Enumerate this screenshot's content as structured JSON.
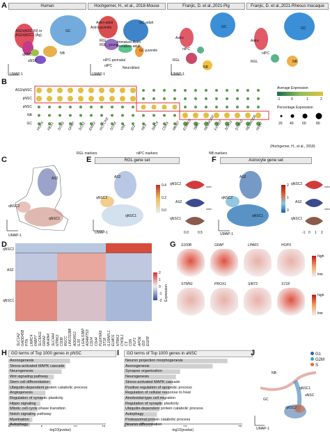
{
  "panel_letters": {
    "a": "A",
    "b": "B",
    "c": "C",
    "d": "D",
    "e": "E",
    "f": "F",
    "g": "G",
    "h": "H",
    "i": "I",
    "j": "J"
  },
  "axis": {
    "umap1": "UMAP-1",
    "umap2": "UMAP-2"
  },
  "panel_a": {
    "titles": [
      "Human",
      "Hochgerner, H., et al., 2018-Mouse",
      "Franjic, D. et al.,2021-Pig",
      "Franjic, D. et al.,2021-Rhesus macaque"
    ],
    "human_labels": {
      "as2_q": "AS2/qNSC (N) or",
      "as2_q2": "AS2/qNSC1 (Ag)",
      "qnsc": "qNSC",
      "ansc": "aNSC",
      "gc": "GC",
      "nb": "NB"
    },
    "mouse_labels": {
      "astro_adult": "Astro-adult",
      "astro_juv": "Astro-juvenile",
      "rgl": "RGL",
      "rgl_young": "RGL_young",
      "imm_astro": "Immature-Astro",
      "imm_adult": "Immature-adult",
      "gc_adult": "GC-adult",
      "gc_juv": "GC-juvenile",
      "nipc_peri": "nIPC-perinatal",
      "nipc": "nIPC",
      "neuroblast": "Neuroblast",
      "imm_gc": "Immature-GC"
    },
    "pig_labels": {
      "astro": "Astro",
      "nipc": "nIPC",
      "rgl": "RGL",
      "nb": "NB",
      "gc": "GC"
    },
    "macaque_labels": {
      "astro": "Astro",
      "nipc": "nIPC",
      "rgl": "RGL",
      "nb": "NB",
      "gc": "GC"
    }
  },
  "panel_b": {
    "rows": [
      "AS2/qNSC",
      "pNSC",
      "aNSC",
      "NB",
      "GC"
    ],
    "genes": [
      "HOPX",
      "HES1",
      "SOX9",
      "GFAP",
      "SOX2",
      "EMX2",
      "NOTCH2",
      "SOX4",
      "VIM",
      "ID3",
      "NES",
      "SMC4",
      "CDK4",
      "MKI67",
      "EOMES",
      "TBR1",
      "NEUROD2",
      "FXYD7",
      "SOX11",
      "STMN2",
      "NEUROD6",
      "NNAT"
    ],
    "group_labels": [
      "RGL markers",
      "nIPC markers",
      "NB markers"
    ],
    "citation": "(Hochgerner, H., et al., 2018)",
    "legend": {
      "avg_title": "Average Expression",
      "avg_ticks": [
        "-1",
        "0",
        "1",
        "2"
      ],
      "pct_title": "Percentage Expression",
      "pct_ticks": [
        "20",
        "40",
        "60",
        "80"
      ]
    },
    "colors": {
      "low": "#1a6b4f",
      "mid": "#8fbf5a",
      "high": "#e0c040"
    }
  },
  "panel_c": {
    "labels": {
      "as2": "AS2",
      "qnsc2": "qNSC2",
      "qnsc1": "qNSC1"
    }
  },
  "panel_e": {
    "title": "RGL gene set",
    "labels": {
      "as2": "AS2",
      "qnsc2": "qNSC2",
      "qnsc1": "qNSC1"
    },
    "scale": [
      "0.4",
      "0.2",
      "0.0"
    ],
    "violin_rows": [
      "qNSC2",
      "AS2",
      "qNSC1"
    ],
    "violin_ticks": [
      "0.0",
      "0.5"
    ],
    "sig": "****"
  },
  "panel_f": {
    "title": "Astrocyte gene set",
    "labels": {
      "as2": "AS2",
      "qnsc2": "qNSC2",
      "qnsc1": "qNSC1"
    },
    "scale": [
      "2",
      "1",
      "0"
    ],
    "violin_rows": [
      "qNSC2",
      "AS2",
      "qNSC1"
    ],
    "violin_ticks": [
      "-1",
      "0",
      "1",
      "2"
    ],
    "sig": "****"
  },
  "panel_d": {
    "row_groups": [
      "qNSC2",
      "AS2",
      "qNSC1"
    ],
    "genes": [
      "SLC1A2",
      "GADD45B",
      "PTN",
      "LRRC4",
      "FABP7",
      "SLC6A11",
      "GRIA2",
      "NKAIN4",
      "SLC4A4",
      "NTRK2",
      "CD38",
      "RGCC",
      "LINC01088",
      "ADGRG1",
      "IL33",
      "LGALS3BP",
      "ADAMTS3",
      "CD24",
      "CD44",
      "PLEKHA5",
      "ST18",
      "IL1RAPL1",
      "ELMO1",
      "NTRK2",
      "CHI3L1",
      "C3",
      "CD9",
      "PLP1",
      "APOE",
      "ID3",
      "EGFR"
    ],
    "scale_ticks": [
      "2",
      "1",
      "0",
      "-1",
      "-2"
    ],
    "scale_title": "Expression"
  },
  "panel_g": {
    "genes": [
      "S100B",
      "GFAP",
      "LPAR1",
      "HOPX",
      "STMN1",
      "PROX1",
      "SIRT2",
      "ST18"
    ],
    "scale": {
      "high": "high",
      "low": "low"
    }
  },
  "panel_h": {
    "title": "GO terms of Top 1000 genes in pNSC",
    "terms": [
      "Axonogenesis",
      "Stress-activated MAPK cascade",
      "Neurogenesis",
      "Wnt signaling pathway",
      "Stem cell differentiation",
      "Ubiquitin-dependent protein catabolic process",
      "Angiogenesis",
      "Regulation of synaptic plasticity",
      "Hippo signaling",
      "Mitotic cell cycle phase transition",
      "Notch signaling pathway",
      "Myelination",
      "Autophagy"
    ],
    "values": [
      9.5,
      8.8,
      8.2,
      7.0,
      6.6,
      6.2,
      5.7,
      5.3,
      4.9,
      4.5,
      4.1,
      3.7,
      3.3
    ],
    "xticks": [
      "0",
      "5",
      "10",
      "15"
    ],
    "xlabel": "-log10(pvalue)",
    "xmax": 15
  },
  "panel_i": {
    "title": "GO terms of Top 1000 genes in aNSC",
    "terms": [
      "Neuron projection morphogenesis",
      "Axonogenesis",
      "Synapse organization",
      "Neurogenesis",
      "Stress-activated MAPK cascade",
      "Positive regulation of apoptotic process",
      "Regulation of cellular response to heat",
      "Ameboidal-type cell migration",
      "Regulation of synaptic plasticity",
      "Ubiquitin-dependent protein catabolic process",
      "Autophagy",
      "Proteasomal protein catabolic process",
      "Neuron differentiation"
    ],
    "values": [
      17.5,
      15.0,
      9.5,
      8.8,
      8.2,
      7.8,
      7.3,
      6.8,
      6.4,
      6.0,
      5.6,
      5.2,
      4.8
    ],
    "xticks": [
      "0",
      "10",
      "20"
    ],
    "xlabel": "-log10(pvalue)",
    "xmax": 20
  },
  "panel_j": {
    "labels": {
      "nb": "NB",
      "qnsc1": "qNSC1",
      "qnsc2": "qNSC2",
      "gc": "GC",
      "ansc": "aNSC"
    },
    "legend": [
      {
        "name": "G1",
        "color": "#2f5fa8"
      },
      {
        "name": "G2M",
        "color": "#3aa8a0"
      },
      {
        "name": "S",
        "color": "#e06a3a"
      }
    ]
  }
}
